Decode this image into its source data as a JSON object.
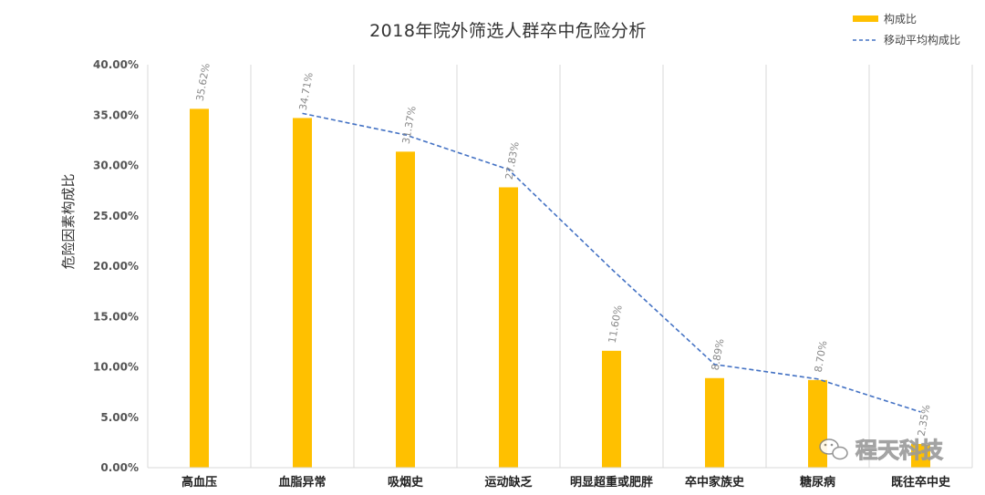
{
  "chart_data": {
    "type": "bar",
    "title": "2018年院外筛选人群卒中危险分析",
    "ylabel": "危险因素构成比",
    "xlabel": "",
    "ylim": [
      0,
      40
    ],
    "yticks": [
      "0.00%",
      "5.00%",
      "10.00%",
      "15.00%",
      "20.00%",
      "25.00%",
      "30.00%",
      "35.00%",
      "40.00%"
    ],
    "categories": [
      "高血压",
      "血脂异常",
      "吸烟史",
      "运动缺乏",
      "明显超重或肥胖",
      "卒中家族史",
      "糖尿病",
      "既往卒中史"
    ],
    "series": [
      {
        "name": "构成比",
        "type": "bar",
        "color": "#FFC000",
        "values": [
          35.62,
          34.71,
          31.37,
          27.83,
          11.6,
          8.89,
          8.7,
          2.35
        ],
        "labels": [
          "35.62%",
          "34.71%",
          "31.37%",
          "27.83%",
          "11.60%",
          "8.89%",
          "8.70%",
          "2.35%"
        ]
      },
      {
        "name": "移动平均构成比",
        "type": "line",
        "style": "dashed",
        "color": "#4472C4",
        "values": [
          null,
          35.17,
          33.04,
          29.6,
          19.72,
          10.25,
          8.8,
          5.53
        ]
      }
    ],
    "legend_position": "top-right",
    "grid": "vertical"
  },
  "watermark": {
    "text": "程天科技",
    "icon": "wechat-icon"
  }
}
